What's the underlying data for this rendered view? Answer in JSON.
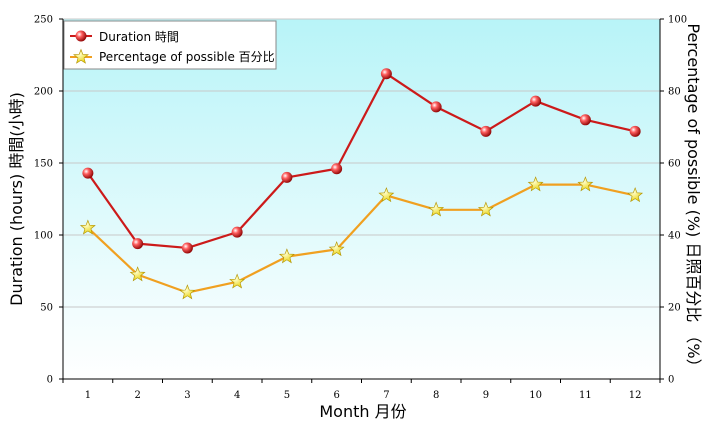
{
  "chart_data": {
    "type": "line",
    "title": "",
    "categories": [
      "1",
      "2",
      "3",
      "4",
      "5",
      "6",
      "7",
      "8",
      "9",
      "10",
      "11",
      "12"
    ],
    "xlabel": "Month 月份",
    "ylabel": "Duration (hours) 時間(小時)",
    "y2label": "Percentage of possible (%) 日照百分比 （%）",
    "ylim": [
      0,
      250
    ],
    "y2lim": [
      0,
      100
    ],
    "yticks": [
      0,
      50,
      100,
      150,
      200,
      250
    ],
    "y2ticks": [
      0,
      20,
      40,
      60,
      80,
      100
    ],
    "grid": true,
    "legend_position": "top-left",
    "series": [
      {
        "name": "Duration 時間",
        "axis": "left",
        "color": "#cc1a1a",
        "marker": "sphere",
        "values": [
          143,
          94,
          91,
          102,
          140,
          146,
          212,
          189,
          172,
          193,
          180,
          172
        ]
      },
      {
        "name": "Percentage of possible 百分比",
        "axis": "right",
        "color": "#f0a020",
        "marker": "star",
        "values": [
          42,
          29,
          24,
          27,
          34,
          36,
          51,
          47,
          47,
          54,
          54,
          51
        ]
      }
    ]
  },
  "colors": {
    "plot_top": "#b8f4f8",
    "plot_bottom": "#ffffff",
    "gridline": "#c8c8c8",
    "axis": "#000000"
  }
}
